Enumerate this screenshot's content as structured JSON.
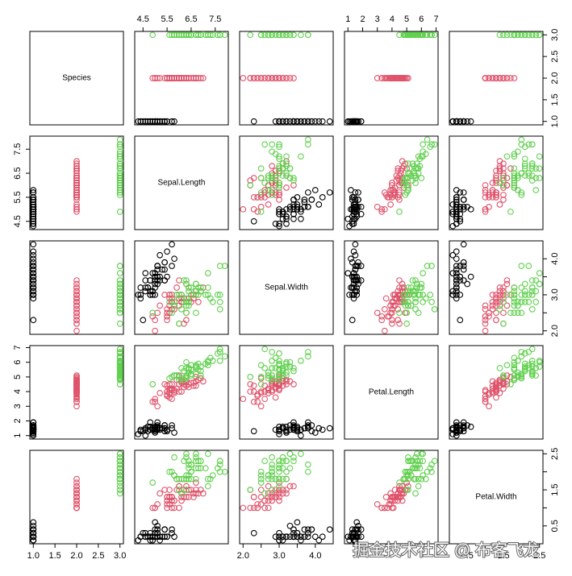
{
  "chart_data": {
    "type": "scatter-matrix",
    "variables": [
      {
        "label": "Species",
        "lim": [
          0.92,
          3.08
        ],
        "ticks": [
          {
            "value": 1,
            "label": "1.0"
          },
          {
            "value": 1.5,
            "label": "1.5"
          },
          {
            "value": 2,
            "label": "2.0"
          },
          {
            "value": 2.5,
            "label": "2.5"
          },
          {
            "value": 3,
            "label": "3.0"
          }
        ]
      },
      {
        "label": "Sepal.Length",
        "lim": [
          4.156,
          8.044
        ],
        "ticks": [
          4.5,
          5.5,
          6.5,
          7.5
        ]
      },
      {
        "label": "Sepal.Width",
        "lim": [
          1.904,
          4.496
        ],
        "ticks": [
          {
            "value": 2,
            "label": "2.0"
          },
          {
            "value": 2.5,
            "label": "2.5"
          },
          {
            "value": 3,
            "label": "3.0"
          },
          {
            "value": 3.5,
            "label": "3.5"
          },
          {
            "value": 4,
            "label": "4.0"
          }
        ]
      },
      {
        "label": "Petal.Length",
        "lim": [
          0.764,
          7.136
        ],
        "ticks": [
          1,
          2,
          3,
          4,
          5,
          6,
          7
        ]
      },
      {
        "label": "Petal.Width",
        "lim": [
          0.004,
          2.596
        ],
        "ticks": [
          {
            "value": 0.5,
            "label": "0.5"
          },
          {
            "value": 1,
            "label": "1.0"
          },
          {
            "value": 1.5,
            "label": "1.5"
          },
          {
            "value": 2,
            "label": "2.0"
          },
          {
            "value": 2.5,
            "label": "2.5"
          }
        ]
      }
    ],
    "series": [
      {
        "color": "#000000",
        "data": [
          [
            1,
            5.1,
            3.5,
            1.4,
            0.2
          ],
          [
            1,
            4.9,
            3.0,
            1.4,
            0.2
          ],
          [
            1,
            4.7,
            3.2,
            1.3,
            0.2
          ],
          [
            1,
            4.6,
            3.1,
            1.5,
            0.2
          ],
          [
            1,
            5.0,
            3.6,
            1.4,
            0.2
          ],
          [
            1,
            5.4,
            3.9,
            1.7,
            0.4
          ],
          [
            1,
            4.6,
            3.4,
            1.4,
            0.3
          ],
          [
            1,
            5.0,
            3.4,
            1.5,
            0.2
          ],
          [
            1,
            4.4,
            2.9,
            1.4,
            0.2
          ],
          [
            1,
            4.9,
            3.1,
            1.5,
            0.1
          ],
          [
            1,
            5.4,
            3.7,
            1.5,
            0.2
          ],
          [
            1,
            4.8,
            3.4,
            1.6,
            0.2
          ],
          [
            1,
            4.8,
            3.0,
            1.4,
            0.1
          ],
          [
            1,
            4.3,
            3.0,
            1.1,
            0.1
          ],
          [
            1,
            5.8,
            4.0,
            1.2,
            0.2
          ],
          [
            1,
            5.7,
            4.4,
            1.5,
            0.4
          ],
          [
            1,
            5.4,
            3.9,
            1.3,
            0.4
          ],
          [
            1,
            5.1,
            3.5,
            1.4,
            0.3
          ],
          [
            1,
            5.7,
            3.8,
            1.7,
            0.3
          ],
          [
            1,
            5.1,
            3.8,
            1.5,
            0.3
          ],
          [
            1,
            5.4,
            3.4,
            1.7,
            0.2
          ],
          [
            1,
            5.1,
            3.7,
            1.5,
            0.4
          ],
          [
            1,
            4.6,
            3.6,
            1.0,
            0.2
          ],
          [
            1,
            5.1,
            3.3,
            1.7,
            0.5
          ],
          [
            1,
            4.8,
            3.4,
            1.9,
            0.2
          ],
          [
            1,
            5.0,
            3.0,
            1.6,
            0.2
          ],
          [
            1,
            5.0,
            3.4,
            1.6,
            0.4
          ],
          [
            1,
            5.2,
            3.5,
            1.5,
            0.2
          ],
          [
            1,
            5.2,
            3.4,
            1.4,
            0.2
          ],
          [
            1,
            4.7,
            3.2,
            1.6,
            0.2
          ],
          [
            1,
            4.8,
            3.1,
            1.6,
            0.2
          ],
          [
            1,
            5.4,
            3.4,
            1.5,
            0.4
          ],
          [
            1,
            5.2,
            4.1,
            1.5,
            0.1
          ],
          [
            1,
            5.5,
            4.2,
            1.4,
            0.2
          ],
          [
            1,
            4.9,
            3.1,
            1.5,
            0.2
          ],
          [
            1,
            5.0,
            3.2,
            1.2,
            0.2
          ],
          [
            1,
            5.5,
            3.5,
            1.3,
            0.2
          ],
          [
            1,
            4.9,
            3.6,
            1.4,
            0.1
          ],
          [
            1,
            4.4,
            3.0,
            1.3,
            0.2
          ],
          [
            1,
            5.1,
            3.4,
            1.5,
            0.2
          ],
          [
            1,
            5.0,
            3.5,
            1.3,
            0.3
          ],
          [
            1,
            4.5,
            2.3,
            1.3,
            0.3
          ],
          [
            1,
            4.4,
            3.2,
            1.3,
            0.2
          ],
          [
            1,
            5.0,
            3.5,
            1.6,
            0.6
          ],
          [
            1,
            5.1,
            3.8,
            1.9,
            0.4
          ],
          [
            1,
            4.8,
            3.0,
            1.4,
            0.3
          ],
          [
            1,
            5.1,
            3.8,
            1.6,
            0.2
          ],
          [
            1,
            4.6,
            3.2,
            1.4,
            0.2
          ],
          [
            1,
            5.3,
            3.7,
            1.5,
            0.2
          ],
          [
            1,
            5.0,
            3.3,
            1.4,
            0.2
          ]
        ]
      },
      {
        "color": "#DF536B",
        "data": [
          [
            2,
            7.0,
            3.2,
            4.7,
            1.4
          ],
          [
            2,
            6.4,
            3.2,
            4.5,
            1.5
          ],
          [
            2,
            6.9,
            3.1,
            4.9,
            1.5
          ],
          [
            2,
            5.5,
            2.3,
            4.0,
            1.3
          ],
          [
            2,
            6.5,
            2.8,
            4.6,
            1.5
          ],
          [
            2,
            5.7,
            2.8,
            4.5,
            1.3
          ],
          [
            2,
            6.3,
            3.3,
            4.7,
            1.6
          ],
          [
            2,
            4.9,
            2.4,
            3.3,
            1.0
          ],
          [
            2,
            6.6,
            2.9,
            4.6,
            1.3
          ],
          [
            2,
            5.2,
            2.7,
            3.9,
            1.4
          ],
          [
            2,
            5.0,
            2.0,
            3.5,
            1.0
          ],
          [
            2,
            5.9,
            3.0,
            4.2,
            1.5
          ],
          [
            2,
            6.0,
            2.2,
            4.0,
            1.0
          ],
          [
            2,
            6.1,
            2.9,
            4.7,
            1.4
          ],
          [
            2,
            5.6,
            2.9,
            3.6,
            1.3
          ],
          [
            2,
            6.7,
            3.1,
            4.4,
            1.4
          ],
          [
            2,
            5.6,
            3.0,
            4.5,
            1.5
          ],
          [
            2,
            5.8,
            2.7,
            4.1,
            1.0
          ],
          [
            2,
            6.2,
            2.2,
            4.5,
            1.5
          ],
          [
            2,
            5.6,
            2.5,
            3.9,
            1.1
          ],
          [
            2,
            5.9,
            3.2,
            4.8,
            1.8
          ],
          [
            2,
            6.1,
            2.8,
            4.0,
            1.3
          ],
          [
            2,
            6.3,
            2.5,
            4.9,
            1.5
          ],
          [
            2,
            6.1,
            2.8,
            4.7,
            1.2
          ],
          [
            2,
            6.4,
            2.9,
            4.3,
            1.3
          ],
          [
            2,
            6.6,
            3.0,
            4.4,
            1.4
          ],
          [
            2,
            6.8,
            2.8,
            4.8,
            1.4
          ],
          [
            2,
            6.7,
            3.0,
            5.0,
            1.7
          ],
          [
            2,
            6.0,
            2.9,
            4.5,
            1.5
          ],
          [
            2,
            5.7,
            2.6,
            3.5,
            1.0
          ],
          [
            2,
            5.5,
            2.4,
            3.8,
            1.1
          ],
          [
            2,
            5.5,
            2.4,
            3.7,
            1.0
          ],
          [
            2,
            5.8,
            2.7,
            3.9,
            1.2
          ],
          [
            2,
            6.0,
            2.7,
            5.1,
            1.6
          ],
          [
            2,
            5.4,
            3.0,
            4.5,
            1.5
          ],
          [
            2,
            6.0,
            3.4,
            4.5,
            1.6
          ],
          [
            2,
            6.7,
            3.1,
            4.7,
            1.5
          ],
          [
            2,
            6.3,
            2.3,
            4.4,
            1.3
          ],
          [
            2,
            5.6,
            3.0,
            4.1,
            1.3
          ],
          [
            2,
            5.5,
            2.5,
            4.0,
            1.3
          ],
          [
            2,
            5.5,
            2.6,
            4.4,
            1.2
          ],
          [
            2,
            6.1,
            3.0,
            4.6,
            1.4
          ],
          [
            2,
            5.8,
            2.6,
            4.0,
            1.2
          ],
          [
            2,
            5.0,
            2.3,
            3.3,
            1.0
          ],
          [
            2,
            5.6,
            2.7,
            4.2,
            1.3
          ],
          [
            2,
            5.7,
            3.0,
            4.2,
            1.2
          ],
          [
            2,
            5.7,
            2.9,
            4.2,
            1.3
          ],
          [
            2,
            6.2,
            2.9,
            4.3,
            1.3
          ],
          [
            2,
            5.1,
            2.5,
            3.0,
            1.1
          ],
          [
            2,
            5.7,
            2.8,
            4.1,
            1.3
          ]
        ]
      },
      {
        "color": "#61D04F",
        "data": [
          [
            3,
            6.3,
            3.3,
            6.0,
            2.5
          ],
          [
            3,
            5.8,
            2.7,
            5.1,
            1.9
          ],
          [
            3,
            7.1,
            3.0,
            5.9,
            2.1
          ],
          [
            3,
            6.3,
            2.9,
            5.6,
            1.8
          ],
          [
            3,
            6.5,
            3.0,
            5.8,
            2.2
          ],
          [
            3,
            7.6,
            3.0,
            6.6,
            2.1
          ],
          [
            3,
            4.9,
            2.5,
            4.5,
            1.7
          ],
          [
            3,
            7.3,
            2.9,
            6.3,
            1.8
          ],
          [
            3,
            6.7,
            2.5,
            5.8,
            1.8
          ],
          [
            3,
            7.2,
            3.6,
            6.1,
            2.5
          ],
          [
            3,
            6.5,
            3.2,
            5.1,
            2.0
          ],
          [
            3,
            6.4,
            2.7,
            5.3,
            1.9
          ],
          [
            3,
            6.8,
            3.0,
            5.5,
            2.1
          ],
          [
            3,
            5.7,
            2.5,
            5.0,
            2.0
          ],
          [
            3,
            5.8,
            2.8,
            5.1,
            2.4
          ],
          [
            3,
            6.4,
            3.2,
            5.3,
            2.3
          ],
          [
            3,
            6.5,
            3.0,
            5.5,
            1.8
          ],
          [
            3,
            7.7,
            3.8,
            6.7,
            2.2
          ],
          [
            3,
            7.7,
            2.6,
            6.9,
            2.3
          ],
          [
            3,
            6.0,
            2.2,
            5.0,
            1.5
          ],
          [
            3,
            6.9,
            3.2,
            5.7,
            2.3
          ],
          [
            3,
            5.6,
            2.8,
            4.9,
            2.0
          ],
          [
            3,
            7.7,
            2.8,
            6.7,
            2.0
          ],
          [
            3,
            6.3,
            2.7,
            4.9,
            1.8
          ],
          [
            3,
            6.7,
            3.3,
            5.7,
            2.1
          ],
          [
            3,
            7.2,
            3.2,
            6.0,
            1.8
          ],
          [
            3,
            6.2,
            2.8,
            4.8,
            1.8
          ],
          [
            3,
            6.1,
            3.0,
            4.9,
            1.8
          ],
          [
            3,
            6.4,
            2.8,
            5.6,
            2.1
          ],
          [
            3,
            7.2,
            3.0,
            5.8,
            1.6
          ],
          [
            3,
            7.4,
            2.8,
            6.1,
            1.9
          ],
          [
            3,
            7.9,
            3.8,
            6.4,
            2.0
          ],
          [
            3,
            6.4,
            2.8,
            5.6,
            2.2
          ],
          [
            3,
            6.3,
            2.8,
            5.1,
            1.5
          ],
          [
            3,
            6.1,
            2.6,
            5.6,
            1.4
          ],
          [
            3,
            7.7,
            3.0,
            6.1,
            2.3
          ],
          [
            3,
            6.3,
            3.4,
            5.6,
            2.4
          ],
          [
            3,
            6.4,
            3.1,
            5.5,
            1.8
          ],
          [
            3,
            6.0,
            3.0,
            4.8,
            1.8
          ],
          [
            3,
            6.9,
            3.1,
            5.4,
            2.1
          ],
          [
            3,
            6.7,
            3.1,
            5.6,
            2.4
          ],
          [
            3,
            6.9,
            3.1,
            5.1,
            2.3
          ],
          [
            3,
            5.8,
            2.7,
            5.1,
            1.9
          ],
          [
            3,
            6.8,
            3.2,
            5.9,
            2.3
          ],
          [
            3,
            6.7,
            3.3,
            5.7,
            2.5
          ],
          [
            3,
            6.7,
            3.0,
            5.2,
            2.3
          ],
          [
            3,
            6.3,
            2.5,
            5.0,
            1.9
          ],
          [
            3,
            6.5,
            3.0,
            5.2,
            2.0
          ],
          [
            3,
            6.2,
            3.4,
            5.4,
            2.3
          ],
          [
            3,
            5.9,
            3.0,
            5.1,
            1.8
          ]
        ]
      }
    ],
    "watermark": "掘金技术社区 @ 布客飞龙"
  }
}
